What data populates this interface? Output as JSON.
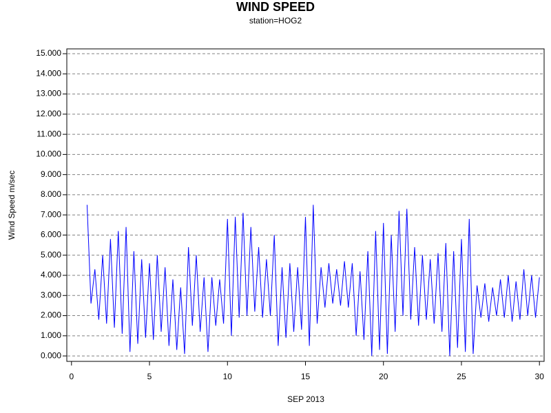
{
  "chart_data": {
    "type": "line",
    "title": "WIND SPEED",
    "subtitle": "station=HOG2",
    "x_label": "SEP 2013",
    "y_label": "Wind Speed m/sec",
    "xlim": [
      -0.3,
      30.3
    ],
    "xticks": [
      0,
      5,
      10,
      15,
      20,
      25,
      30
    ],
    "ylim": [
      -0.27,
      15.24
    ],
    "yticks": [
      {
        "value": 0,
        "label": "0.000"
      },
      {
        "value": 1,
        "label": "1.000"
      },
      {
        "value": 2,
        "label": "2.000"
      },
      {
        "value": 3,
        "label": "3.000"
      },
      {
        "value": 4,
        "label": "4.000"
      },
      {
        "value": 5,
        "label": "5.000"
      },
      {
        "value": 6,
        "label": "6.000"
      },
      {
        "value": 7,
        "label": "7.000"
      },
      {
        "value": 8,
        "label": "8.000"
      },
      {
        "value": 9,
        "label": "9.000"
      },
      {
        "value": 10,
        "label": "10.000"
      },
      {
        "value": 11,
        "label": "11.000"
      },
      {
        "value": 12,
        "label": "12.000"
      },
      {
        "value": 13,
        "label": "13.000"
      },
      {
        "value": 14,
        "label": "14.000"
      },
      {
        "value": 15,
        "label": "15.000"
      }
    ],
    "grid": true,
    "color": "#0000ff",
    "x": [
      1,
      1.25,
      1.5,
      1.75,
      2,
      2.25,
      2.5,
      2.75,
      3,
      3.25,
      3.5,
      3.75,
      4,
      4.25,
      4.5,
      4.75,
      5,
      5.25,
      5.5,
      5.75,
      6,
      6.25,
      6.5,
      6.75,
      7,
      7.25,
      7.5,
      7.75,
      8,
      8.25,
      8.5,
      8.75,
      9,
      9.25,
      9.5,
      9.75,
      10,
      10.25,
      10.5,
      10.75,
      11,
      11.25,
      11.5,
      11.75,
      12,
      12.25,
      12.5,
      12.75,
      13,
      13.25,
      13.5,
      13.75,
      14,
      14.25,
      14.5,
      14.75,
      15,
      15.25,
      15.5,
      15.75,
      16,
      16.25,
      16.5,
      16.75,
      17,
      17.25,
      17.5,
      17.75,
      18,
      18.25,
      18.5,
      18.75,
      19,
      19.25,
      19.5,
      19.75,
      20,
      20.25,
      20.5,
      20.75,
      21,
      21.25,
      21.5,
      21.75,
      22,
      22.25,
      22.5,
      22.75,
      23,
      23.25,
      23.5,
      23.75,
      24,
      24.25,
      24.5,
      24.75,
      25,
      25.25,
      25.5,
      25.75,
      26,
      26.25,
      26.5,
      26.75,
      27,
      27.25,
      27.5,
      27.75,
      28,
      28.25,
      28.5,
      28.75,
      29,
      29.25,
      29.5,
      29.75,
      30
    ],
    "values": [
      7.5,
      2.6,
      4.3,
      1.8,
      5.0,
      1.6,
      5.8,
      1.4,
      6.2,
      1.1,
      6.4,
      0.2,
      5.2,
      0.6,
      4.8,
      0.9,
      4.6,
      0.8,
      5.0,
      1.2,
      4.4,
      0.5,
      3.8,
      0.3,
      3.4,
      0.1,
      5.4,
      1.5,
      5.0,
      1.2,
      3.9,
      0.2,
      3.9,
      1.5,
      3.8,
      1.6,
      6.8,
      1.0,
      6.9,
      1.9,
      7.1,
      2.0,
      6.4,
      2.2,
      5.4,
      1.9,
      4.8,
      2.0,
      6.0,
      0.5,
      4.4,
      0.9,
      4.6,
      1.2,
      4.4,
      1.3,
      6.9,
      0.5,
      7.5,
      1.6,
      4.4,
      2.4,
      4.6,
      2.6,
      4.3,
      2.5,
      4.7,
      2.4,
      4.6,
      1.0,
      4.2,
      0.8,
      5.2,
      0.0,
      6.2,
      0.3,
      6.6,
      0.1,
      6.0,
      1.2,
      7.2,
      2.0,
      7.3,
      1.8,
      5.4,
      1.5,
      5.0,
      1.8,
      4.8,
      1.6,
      5.1,
      1.2,
      5.6,
      0.0,
      5.2,
      0.4,
      5.8,
      0.2,
      6.8,
      0.1,
      3.5,
      1.9,
      3.6,
      1.7,
      3.4,
      2.0,
      3.8,
      1.9,
      4.0,
      1.7,
      3.7,
      1.8,
      4.3,
      2.0,
      4.0,
      1.9,
      3.9
    ]
  }
}
